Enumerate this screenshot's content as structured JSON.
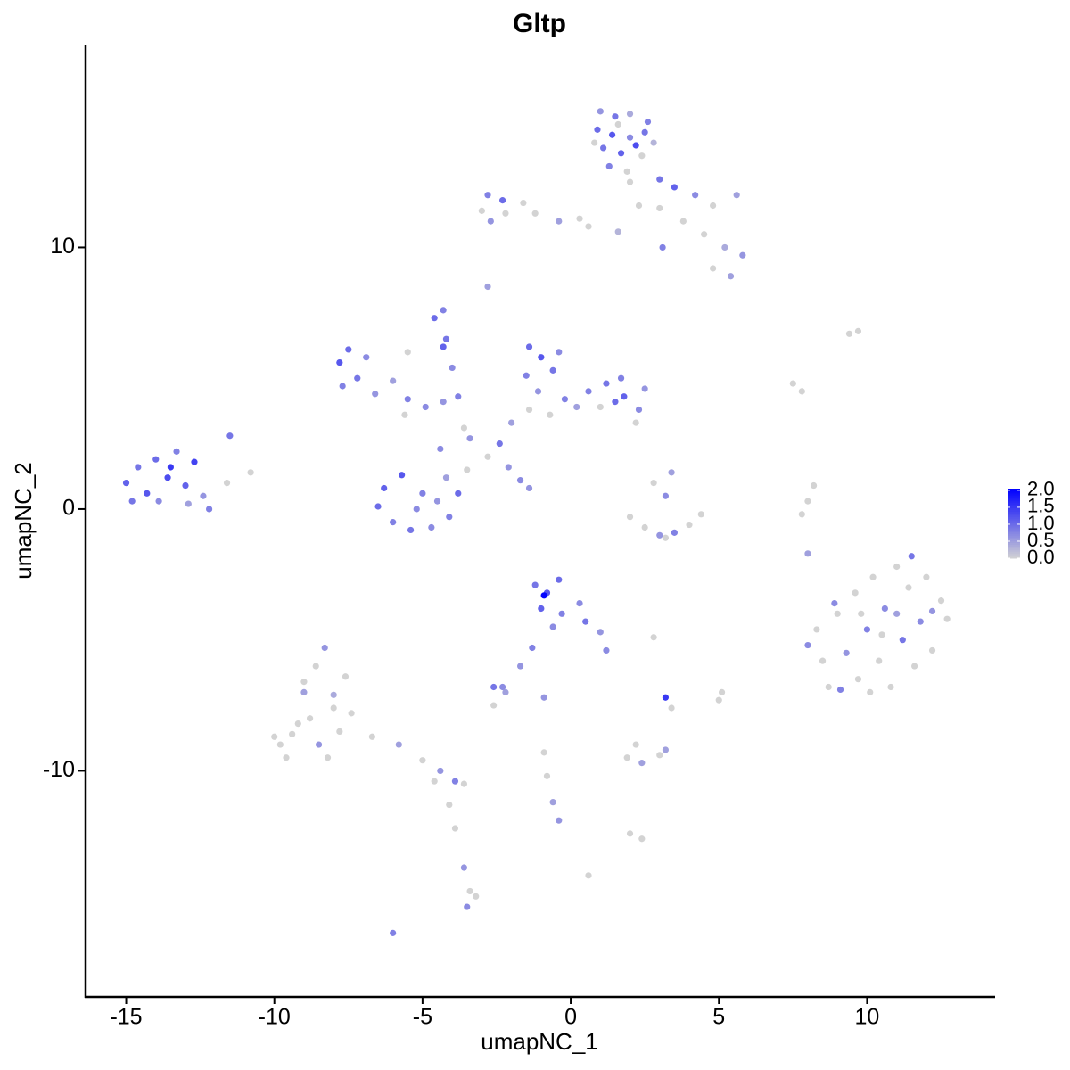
{
  "chart_data": {
    "type": "scatter",
    "title": "Gltp",
    "x_label": "umapNC_1",
    "y_label": "umapNC_2",
    "xlim": [
      -16.37,
      14.29
    ],
    "ylim": [
      -18.64,
      17.75
    ],
    "xticks": [
      -15,
      -10,
      -5,
      0,
      5,
      10
    ],
    "yticks": [
      -10,
      0,
      10
    ],
    "grid": false,
    "colorbar": {
      "low_color": "#d3d3d3",
      "high_color": "#0000ff",
      "lim": [
        0,
        2.05
      ],
      "ticks": [
        {
          "value": 0,
          "label": "0.0"
        },
        0.5,
        {
          "value": 1,
          "label": "1.0"
        },
        1.5,
        {
          "value": 2,
          "label": "2.0"
        }
      ]
    },
    "points": [
      [
        1.0,
        15.2,
        0.6
      ],
      [
        1.5,
        15.0,
        0.9
      ],
      [
        2.0,
        15.1,
        0.4
      ],
      [
        2.6,
        14.8,
        0.8
      ],
      [
        0.9,
        14.5,
        1.0
      ],
      [
        1.4,
        14.3,
        1.2
      ],
      [
        2.0,
        14.2,
        0.7
      ],
      [
        2.8,
        14.0,
        0.3
      ],
      [
        1.1,
        13.8,
        0.9
      ],
      [
        1.7,
        13.6,
        1.1
      ],
      [
        2.4,
        13.5,
        0
      ],
      [
        1.3,
        13.1,
        0.8
      ],
      [
        1.9,
        12.9,
        0
      ],
      [
        2.2,
        13.9,
        1.3
      ],
      [
        0.8,
        14.0,
        0
      ],
      [
        2.5,
        14.4,
        0.9
      ],
      [
        1.6,
        14.7,
        0
      ],
      [
        2.0,
        12.5,
        0
      ],
      [
        2.3,
        11.6,
        0
      ],
      [
        3.0,
        12.6,
        0.9
      ],
      [
        3.5,
        12.3,
        1.1
      ],
      [
        4.2,
        12.0,
        0.7
      ],
      [
        4.8,
        11.6,
        0
      ],
      [
        5.6,
        12.0,
        0.5
      ],
      [
        3.8,
        11.0,
        0
      ],
      [
        4.5,
        10.5,
        0
      ],
      [
        5.2,
        10.0,
        0.4
      ],
      [
        5.8,
        9.7,
        0.6
      ],
      [
        4.8,
        9.2,
        0
      ],
      [
        5.4,
        8.9,
        0.5
      ],
      [
        3.1,
        10.0,
        0.8
      ],
      [
        3.0,
        11.5,
        0
      ],
      [
        -3.0,
        11.4,
        0
      ],
      [
        -2.8,
        12.0,
        0.8
      ],
      [
        -2.3,
        11.8,
        1.0
      ],
      [
        -2.7,
        11.0,
        0.6
      ],
      [
        -2.2,
        11.3,
        0
      ],
      [
        -1.6,
        11.7,
        0
      ],
      [
        -1.2,
        11.3,
        0
      ],
      [
        -0.4,
        11.0,
        0.5
      ],
      [
        0.3,
        11.1,
        0
      ],
      [
        0.6,
        10.8,
        0
      ],
      [
        1.6,
        10.6,
        0.3
      ],
      [
        -2.8,
        8.5,
        0.5
      ],
      [
        -15.0,
        1.0,
        1.1
      ],
      [
        -14.6,
        1.6,
        0.9
      ],
      [
        -14.3,
        0.6,
        1.2
      ],
      [
        -14.0,
        1.9,
        1.0
      ],
      [
        -13.6,
        1.2,
        1.3
      ],
      [
        -13.3,
        2.2,
        0.8
      ],
      [
        -13.0,
        0.9,
        1.1
      ],
      [
        -12.7,
        1.8,
        1.4
      ],
      [
        -13.9,
        0.3,
        0.7
      ],
      [
        -12.4,
        0.5,
        0.6
      ],
      [
        -12.2,
        0.0,
        0.8
      ],
      [
        -11.6,
        1.0,
        0
      ],
      [
        -11.5,
        2.8,
        0.9
      ],
      [
        -14.8,
        0.3,
        0.9
      ],
      [
        -13.5,
        1.6,
        1.5
      ],
      [
        -12.9,
        0.2,
        0.5
      ],
      [
        -10.8,
        1.4,
        0
      ],
      [
        -7.8,
        5.6,
        1.2
      ],
      [
        -7.5,
        6.1,
        1.0
      ],
      [
        -7.2,
        5.0,
        0.9
      ],
      [
        -7.7,
        4.7,
        0.8
      ],
      [
        -6.9,
        5.8,
        0.7
      ],
      [
        -6.6,
        4.4,
        0.6
      ],
      [
        -6.0,
        4.9,
        0.5
      ],
      [
        -5.5,
        4.2,
        0.8
      ],
      [
        -4.9,
        3.9,
        0.7
      ],
      [
        -4.3,
        4.1,
        0.6
      ],
      [
        -5.6,
        3.6,
        0
      ],
      [
        -3.8,
        4.3,
        0.8
      ],
      [
        -4.3,
        6.2,
        1.1
      ],
      [
        -4.0,
        5.4,
        0.7
      ],
      [
        -3.6,
        3.1,
        0
      ],
      [
        -6.3,
        0.8,
        1.1
      ],
      [
        -6.5,
        0.1,
        1.0
      ],
      [
        -6.0,
        -0.5,
        0.8
      ],
      [
        -5.4,
        -0.8,
        0.9
      ],
      [
        -4.7,
        -0.7,
        0.7
      ],
      [
        -4.1,
        -0.3,
        0.8
      ],
      [
        -3.8,
        0.6,
        1.0
      ],
      [
        -4.5,
        0.3,
        0.6
      ],
      [
        -5.2,
        0.0,
        0.7
      ],
      [
        -5.7,
        1.3,
        1.2
      ],
      [
        -4.2,
        1.2,
        0.5
      ],
      [
        -5.0,
        0.6,
        0.8
      ],
      [
        -4.4,
        2.3,
        0.7
      ],
      [
        -3.5,
        1.5,
        0
      ],
      [
        -1.4,
        6.2,
        1.0
      ],
      [
        -1.0,
        5.8,
        1.2
      ],
      [
        -1.5,
        5.1,
        0.8
      ],
      [
        -0.6,
        5.3,
        0.9
      ],
      [
        -0.4,
        6.0,
        0.7
      ],
      [
        -1.1,
        4.5,
        0.6
      ],
      [
        -0.2,
        4.2,
        0.8
      ],
      [
        -1.4,
        3.8,
        0
      ],
      [
        -0.7,
        3.6,
        0
      ],
      [
        -2.0,
        3.3,
        0.5
      ],
      [
        -2.4,
        2.5,
        0.9
      ],
      [
        -2.8,
        2.0,
        0
      ],
      [
        -2.1,
        1.6,
        0.6
      ],
      [
        -1.7,
        1.1,
        0.7
      ],
      [
        -1.4,
        0.8,
        0.6
      ],
      [
        0.6,
        4.5,
        0.8
      ],
      [
        1.2,
        4.8,
        0.9
      ],
      [
        1.8,
        4.3,
        1.1
      ],
      [
        2.3,
        3.8,
        0.7
      ],
      [
        1.0,
        3.9,
        0
      ],
      [
        1.5,
        4.1,
        1.0
      ],
      [
        2.5,
        4.6,
        0.6
      ],
      [
        0.2,
        3.9,
        0.5
      ],
      [
        2.2,
        3.3,
        0
      ],
      [
        1.7,
        5.0,
        0.8
      ],
      [
        -1.2,
        -2.9,
        0.9
      ],
      [
        -0.8,
        -3.2,
        1.2
      ],
      [
        -0.4,
        -2.7,
        1.0
      ],
      [
        -1.0,
        -3.8,
        1.1
      ],
      [
        -0.3,
        -4.0,
        0.8
      ],
      [
        0.3,
        -3.6,
        0.7
      ],
      [
        0.5,
        -4.3,
        0.9
      ],
      [
        1.0,
        -4.7,
        0.6
      ],
      [
        -0.6,
        -4.5,
        0.7
      ],
      [
        -0.9,
        -3.3,
        2.0
      ],
      [
        -1.3,
        -5.3,
        0.8
      ],
      [
        -1.7,
        -6.0,
        0.6
      ],
      [
        -2.6,
        -6.8,
        0.9
      ],
      [
        -2.2,
        -7.0,
        0.5
      ],
      [
        -2.6,
        -7.5,
        0
      ],
      [
        1.2,
        -5.4,
        0.7
      ],
      [
        -10.0,
        -8.7,
        0
      ],
      [
        -9.6,
        -9.5,
        0
      ],
      [
        -9.2,
        -8.2,
        0
      ],
      [
        -9.0,
        -7.0,
        0.5
      ],
      [
        -8.6,
        -6.0,
        0
      ],
      [
        -8.3,
        -5.3,
        0.6
      ],
      [
        -8.0,
        -7.6,
        0
      ],
      [
        -7.8,
        -8.5,
        0
      ],
      [
        -8.5,
        -9.0,
        0.6
      ],
      [
        -9.4,
        -8.6,
        0
      ],
      [
        -7.4,
        -7.8,
        0
      ],
      [
        -8.8,
        -8.0,
        0
      ],
      [
        -7.6,
        -6.4,
        0
      ],
      [
        -9.0,
        -6.6,
        0
      ],
      [
        -8.2,
        -9.5,
        0
      ],
      [
        -6.7,
        -8.7,
        0
      ],
      [
        -5.8,
        -9.0,
        0.5
      ],
      [
        -5.0,
        -9.6,
        0
      ],
      [
        -4.4,
        -10.0,
        0.6
      ],
      [
        -3.9,
        -10.4,
        0.8
      ],
      [
        -3.6,
        -10.5,
        0
      ],
      [
        -4.6,
        -10.4,
        0
      ],
      [
        -9.8,
        -9.0,
        0
      ],
      [
        -8.0,
        -7.1,
        0.4
      ],
      [
        -4.1,
        -11.3,
        0
      ],
      [
        -3.9,
        -12.2,
        0
      ],
      [
        -3.6,
        -13.7,
        0.6
      ],
      [
        -3.4,
        -14.6,
        0
      ],
      [
        -3.5,
        -15.2,
        0.7
      ],
      [
        -3.2,
        -14.8,
        0
      ],
      [
        -6.0,
        -16.2,
        0.8
      ],
      [
        8.0,
        -5.2,
        0.7
      ],
      [
        8.3,
        -4.6,
        0
      ],
      [
        8.5,
        -5.8,
        0
      ],
      [
        8.7,
        -6.8,
        0
      ],
      [
        9.0,
        -4.0,
        0
      ],
      [
        9.3,
        -5.5,
        0.6
      ],
      [
        9.6,
        -3.2,
        0
      ],
      [
        9.7,
        -6.5,
        0
      ],
      [
        10.0,
        -4.6,
        0.8
      ],
      [
        10.2,
        -2.6,
        0
      ],
      [
        10.4,
        -5.8,
        0
      ],
      [
        10.6,
        -3.8,
        0.7
      ],
      [
        10.8,
        -6.8,
        0
      ],
      [
        11.0,
        -2.2,
        0
      ],
      [
        11.2,
        -5.0,
        0.9
      ],
      [
        11.4,
        -3.0,
        0
      ],
      [
        11.6,
        -6.0,
        0
      ],
      [
        11.8,
        -4.3,
        0.7
      ],
      [
        12.0,
        -2.6,
        0
      ],
      [
        12.2,
        -5.4,
        0
      ],
      [
        12.5,
        -3.5,
        0
      ],
      [
        12.7,
        -4.2,
        0
      ],
      [
        9.1,
        -6.9,
        0.8
      ],
      [
        10.1,
        -7.0,
        0
      ],
      [
        11.5,
        -1.8,
        0.9
      ],
      [
        8.9,
        -3.6,
        0.7
      ],
      [
        10.5,
        -4.8,
        0
      ],
      [
        11.0,
        -4.0,
        0.5
      ],
      [
        9.8,
        -4.0,
        0
      ],
      [
        12.2,
        -3.9,
        0.6
      ],
      [
        2.0,
        -0.3,
        0
      ],
      [
        2.5,
        -0.7,
        0
      ],
      [
        3.0,
        -1.0,
        0.6
      ],
      [
        3.5,
        -0.9,
        0.8
      ],
      [
        4.0,
        -0.6,
        0
      ],
      [
        4.4,
        -0.2,
        0
      ],
      [
        3.2,
        -1.1,
        0
      ],
      [
        2.8,
        1.0,
        0
      ],
      [
        3.2,
        0.5,
        0.7
      ],
      [
        3.4,
        1.4,
        0.5
      ],
      [
        2.8,
        -4.9,
        0
      ],
      [
        3.2,
        -7.2,
        1.5
      ],
      [
        3.4,
        -7.6,
        0
      ],
      [
        5.0,
        -7.3,
        0
      ],
      [
        -0.9,
        -9.3,
        0
      ],
      [
        -0.8,
        -10.2,
        0
      ],
      [
        -0.6,
        -11.2,
        0.5
      ],
      [
        -0.4,
        -11.9,
        0.6
      ],
      [
        0.6,
        -14.0,
        0
      ],
      [
        1.9,
        -9.5,
        0
      ],
      [
        2.4,
        -9.7,
        0.5
      ],
      [
        3.0,
        -9.4,
        0
      ],
      [
        3.2,
        -9.2,
        0.5
      ],
      [
        2.2,
        -9.0,
        0
      ],
      [
        2.4,
        -12.6,
        0
      ],
      [
        2.0,
        -12.4,
        0
      ],
      [
        7.8,
        -0.2,
        0
      ],
      [
        8.0,
        0.3,
        0
      ],
      [
        8.2,
        0.9,
        0
      ],
      [
        8.0,
        -1.7,
        0.5
      ],
      [
        9.4,
        6.7,
        0
      ],
      [
        9.7,
        6.8,
        0
      ],
      [
        7.5,
        4.8,
        0
      ],
      [
        7.8,
        4.5,
        0
      ],
      [
        -4.6,
        7.3,
        1.0
      ],
      [
        -4.3,
        7.6,
        0.8
      ],
      [
        -4.2,
        6.5,
        0.9
      ],
      [
        -0.9,
        -7.2,
        0.6
      ],
      [
        5.1,
        -7.0,
        0
      ],
      [
        -2.3,
        -6.8,
        0.7
      ],
      [
        -5.5,
        6.0,
        0
      ],
      [
        -3.4,
        2.7,
        0.6
      ]
    ]
  }
}
